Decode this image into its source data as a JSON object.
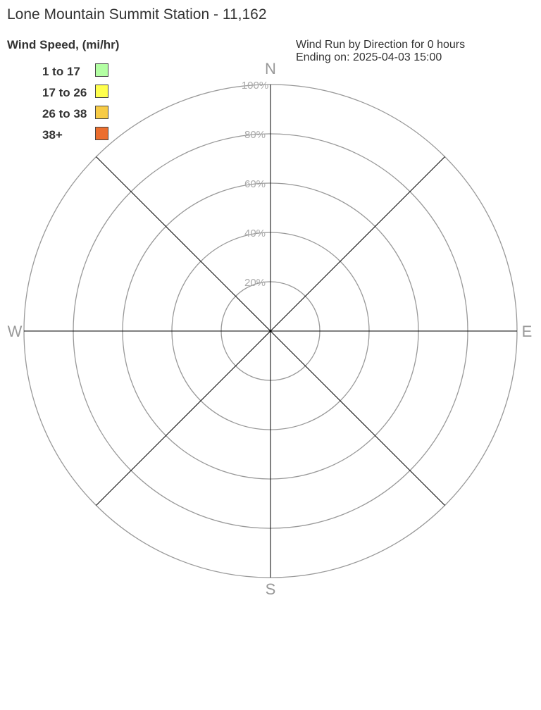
{
  "title": "Lone Mountain Summit Station - 11,162",
  "subtitle_line1": "Wind Run by Direction for 0 hours",
  "subtitle_line2": "Ending on: 2025-04-03 15:00",
  "chart_data": {
    "type": "wind-rose",
    "legend_title": "Wind Speed, (mi/hr)",
    "legend_placement": "top-left",
    "bins": [
      {
        "label": "1 to 17",
        "color": "#b3ffa3"
      },
      {
        "label": "17 to 26",
        "color": "#ffff4d"
      },
      {
        "label": "26 to 38",
        "color": "#f7cb45"
      },
      {
        "label": "38+",
        "color": "#ec6e2e"
      }
    ],
    "directions": [
      "N",
      "E",
      "S",
      "W"
    ],
    "radial_ticks": [
      "20%",
      "40%",
      "60%",
      "80%",
      "100%"
    ],
    "radial_range": [
      0,
      100
    ],
    "series": []
  }
}
